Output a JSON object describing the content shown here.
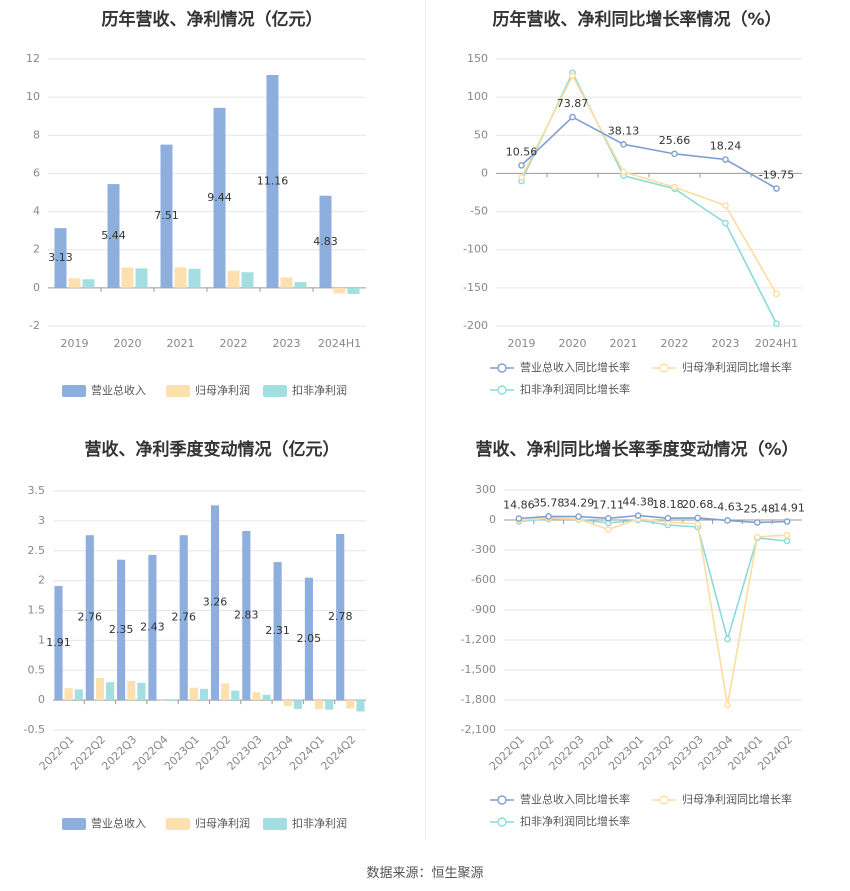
{
  "footer": "数据来源：恒生聚源",
  "colors": {
    "revenue": "#8eaedd",
    "netprofit": "#fde0b0",
    "deducted": "#a3dfe0",
    "line_revenue": "#7f9fd1",
    "line_netprofit": "#fddca0",
    "line_deducted": "#8adbd9"
  },
  "chart_data": [
    {
      "id": "annual_amount",
      "type": "bar",
      "title": "历年营收、净利情况（亿元）",
      "categories": [
        "2019",
        "2020",
        "2021",
        "2022",
        "2023",
        "2024H1"
      ],
      "ylim": [
        -2,
        12
      ],
      "yticks": [
        -2,
        0,
        2,
        4,
        6,
        8,
        10,
        12
      ],
      "ytick_labels": [
        "-2",
        "0",
        "2",
        "4",
        "6",
        "8",
        "10",
        "12"
      ],
      "series": [
        {
          "name": "营业总收入",
          "values": [
            3.13,
            5.44,
            7.51,
            9.44,
            11.16,
            4.83
          ],
          "labels": [
            "3.13",
            "5.44",
            "7.51",
            "9.44",
            "11.16",
            "4.83"
          ]
        },
        {
          "name": "归母净利润",
          "values": [
            0.5,
            1.07,
            1.08,
            0.9,
            0.55,
            -0.28
          ]
        },
        {
          "name": "扣非净利润",
          "values": [
            0.45,
            1.02,
            1.0,
            0.82,
            0.3,
            -0.32
          ]
        }
      ],
      "legend_position": "bottom"
    },
    {
      "id": "annual_growth",
      "type": "line",
      "title": "历年营收、净利同比增长率情况（%）",
      "categories": [
        "2019",
        "2020",
        "2021",
        "2022",
        "2023",
        "2024H1"
      ],
      "ylim": [
        -200,
        150
      ],
      "yticks": [
        -200,
        -150,
        -100,
        -50,
        0,
        50,
        100,
        150
      ],
      "ytick_labels": [
        "-200",
        "-150",
        "-100",
        "-50",
        "0",
        "50",
        "100",
        "150"
      ],
      "series": [
        {
          "name": "营业总收入同比增长率",
          "values": [
            10.56,
            73.87,
            38.13,
            25.66,
            18.24,
            -19.75
          ],
          "labels": [
            "10.56",
            "73.87",
            "38.13",
            "25.66",
            "18.24",
            "-19.75"
          ]
        },
        {
          "name": "归母净利润同比增长率",
          "values": [
            -5,
            128,
            2,
            -18,
            -42,
            -158
          ]
        },
        {
          "name": "扣非净利润同比增长率",
          "values": [
            -10,
            132,
            -3,
            -20,
            -65,
            -197
          ]
        }
      ],
      "legend_position": "bottom"
    },
    {
      "id": "quarterly_amount",
      "type": "bar",
      "title": "营收、净利季度变动情况（亿元）",
      "categories": [
        "2022Q1",
        "2022Q2",
        "2022Q3",
        "2022Q4",
        "2023Q1",
        "2023Q2",
        "2023Q3",
        "2023Q4",
        "2024Q1",
        "2024Q2"
      ],
      "ylim": [
        -0.5,
        3.5
      ],
      "yticks": [
        -0.5,
        0,
        0.5,
        1,
        1.5,
        2,
        2.5,
        3,
        3.5
      ],
      "ytick_labels": [
        "-0.5",
        "0",
        "0.5",
        "1",
        "1.5",
        "2",
        "2.5",
        "3",
        "3.5"
      ],
      "series": [
        {
          "name": "营业总收入",
          "values": [
            1.91,
            2.76,
            2.35,
            2.43,
            2.76,
            3.26,
            2.83,
            2.31,
            2.05,
            2.78
          ],
          "labels": [
            "1.91",
            "2.76",
            "2.35",
            "2.43",
            "2.76",
            "3.26",
            "2.83",
            "2.31",
            "2.05",
            "2.78"
          ]
        },
        {
          "name": "归母净利润",
          "values": [
            0.2,
            0.37,
            0.32,
            0.0,
            0.21,
            0.28,
            0.13,
            -0.1,
            -0.15,
            -0.14
          ]
        },
        {
          "name": "扣非净利润",
          "values": [
            0.18,
            0.3,
            0.29,
            0.0,
            0.19,
            0.16,
            0.09,
            -0.15,
            -0.16,
            -0.19
          ]
        }
      ],
      "legend_position": "bottom"
    },
    {
      "id": "quarterly_growth",
      "type": "line",
      "title": "营收、净利同比增长率季度变动情况（%）",
      "categories": [
        "2022Q1",
        "2022Q2",
        "2022Q3",
        "2022Q4",
        "2023Q1",
        "2023Q2",
        "2023Q3",
        "2023Q4",
        "2024Q1",
        "2024Q2"
      ],
      "ylim": [
        -2100,
        300
      ],
      "yticks": [
        -2100,
        -1800,
        -1500,
        -1200,
        -900,
        -600,
        -300,
        0,
        300
      ],
      "ytick_labels": [
        "-2,100",
        "-1,800",
        "-1,500",
        "-1,200",
        "-900",
        "-600",
        "-300",
        "0",
        "300"
      ],
      "series": [
        {
          "name": "营业总收入同比增长率",
          "values": [
            14.86,
            35.78,
            34.29,
            17.11,
            44.38,
            18.18,
            20.68,
            -4.63,
            -25.48,
            -14.91
          ],
          "labels": [
            "14.86",
            "35.78",
            "34.29",
            "17.11",
            "44.38",
            "18.18",
            "20.68",
            "-4.63",
            "-25.48",
            "-14.91"
          ]
        },
        {
          "name": "归母净利润同比增长率",
          "values": [
            -5,
            20,
            10,
            -95,
            10,
            -20,
            -40,
            -1850,
            -170,
            -150
          ]
        },
        {
          "name": "扣非净利润同比增长率",
          "values": [
            -15,
            10,
            5,
            -30,
            0,
            -50,
            -70,
            -1190,
            -180,
            -210
          ]
        }
      ],
      "legend_position": "bottom"
    }
  ]
}
